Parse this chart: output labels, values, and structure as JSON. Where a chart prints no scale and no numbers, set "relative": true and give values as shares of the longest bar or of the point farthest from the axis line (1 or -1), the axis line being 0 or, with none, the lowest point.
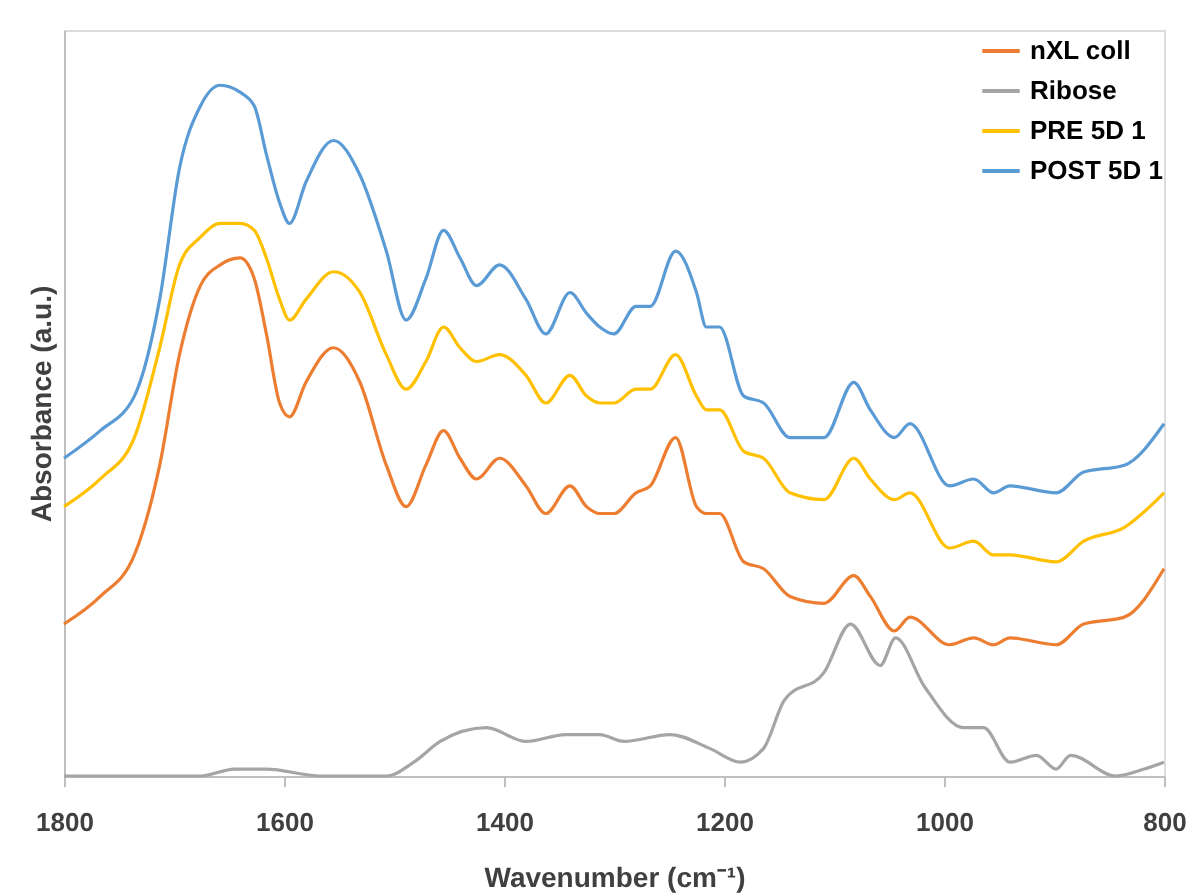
{
  "chart_data": {
    "type": "line",
    "xlabel": "Wavenumber (cm⁻¹)",
    "ylabel": "Absorbance (a.u.)",
    "relative": true,
    "xlim": [
      1800,
      800
    ],
    "xticks": [
      1800,
      1600,
      1400,
      1200,
      1000,
      800
    ],
    "tick_labels": "x",
    "grid": false,
    "legend": "top right",
    "marker": "none",
    "line_style": "solid",
    "x": [
      1800,
      1767,
      1736,
      1713,
      1695,
      1676,
      1658,
      1640,
      1627,
      1616,
      1604,
      1595,
      1580,
      1555,
      1531,
      1507,
      1489,
      1471,
      1455,
      1440,
      1425,
      1404,
      1380,
      1362,
      1340,
      1325,
      1313,
      1300,
      1280,
      1267,
      1244,
      1225,
      1216,
      1204,
      1182,
      1164,
      1140,
      1109,
      1082,
      1067,
      1045,
      1031,
      995,
      973,
      955,
      940,
      898,
      873,
      836,
      800
    ],
    "series": [
      {
        "name": "nXL coll",
        "color": "#ed7d31",
        "values": [
          0.22,
          0.26,
          0.32,
          0.45,
          0.61,
          0.71,
          0.74,
          0.75,
          0.72,
          0.64,
          0.54,
          0.52,
          0.57,
          0.62,
          0.57,
          0.45,
          0.39,
          0.45,
          0.5,
          0.46,
          0.43,
          0.46,
          0.42,
          0.38,
          0.42,
          0.39,
          0.38,
          0.38,
          0.41,
          0.42,
          0.49,
          0.39,
          0.38,
          0.38,
          0.31,
          0.3,
          0.26,
          0.25,
          0.29,
          0.26,
          0.21,
          0.23,
          0.19,
          0.2,
          0.19,
          0.2,
          0.19,
          0.22,
          0.23,
          0.3
        ]
      },
      {
        "name": "Ribose",
        "color": "#a5a5a5",
        "x": [
          1800,
          1676,
          1645,
          1616,
          1567,
          1507,
          1482,
          1458,
          1416,
          1380,
          1344,
          1313,
          1291,
          1249,
          1213,
          1185,
          1164,
          1145,
          1109,
          1085,
          1058,
          1044,
          1018,
          982,
          964,
          940,
          916,
          898,
          885,
          844,
          818,
          800
        ],
        "values": [
          0.0,
          0.0,
          0.01,
          0.01,
          0.0,
          0.0,
          0.02,
          0.05,
          0.07,
          0.05,
          0.06,
          0.06,
          0.05,
          0.06,
          0.04,
          0.02,
          0.04,
          0.11,
          0.15,
          0.22,
          0.16,
          0.2,
          0.13,
          0.07,
          0.07,
          0.02,
          0.03,
          0.01,
          0.03,
          0.0,
          0.01,
          0.02
        ]
      },
      {
        "name": "PRE 5D 1",
        "color": "#ffc000",
        "values": [
          0.39,
          0.43,
          0.49,
          0.62,
          0.74,
          0.78,
          0.8,
          0.8,
          0.79,
          0.75,
          0.69,
          0.66,
          0.69,
          0.73,
          0.7,
          0.61,
          0.56,
          0.6,
          0.65,
          0.62,
          0.6,
          0.61,
          0.58,
          0.54,
          0.58,
          0.55,
          0.54,
          0.54,
          0.56,
          0.56,
          0.61,
          0.55,
          0.53,
          0.53,
          0.47,
          0.46,
          0.41,
          0.4,
          0.46,
          0.43,
          0.4,
          0.41,
          0.33,
          0.34,
          0.32,
          0.32,
          0.31,
          0.34,
          0.36,
          0.41
        ]
      },
      {
        "name": "POST 5D 1",
        "color": "#5b9bd5",
        "values": [
          0.46,
          0.5,
          0.55,
          0.69,
          0.88,
          0.97,
          1.0,
          0.99,
          0.97,
          0.9,
          0.83,
          0.8,
          0.86,
          0.92,
          0.87,
          0.76,
          0.66,
          0.72,
          0.79,
          0.75,
          0.71,
          0.74,
          0.69,
          0.64,
          0.7,
          0.67,
          0.65,
          0.64,
          0.68,
          0.68,
          0.76,
          0.7,
          0.65,
          0.65,
          0.55,
          0.54,
          0.49,
          0.49,
          0.57,
          0.53,
          0.49,
          0.51,
          0.42,
          0.43,
          0.41,
          0.42,
          0.41,
          0.44,
          0.45,
          0.51
        ]
      }
    ]
  }
}
